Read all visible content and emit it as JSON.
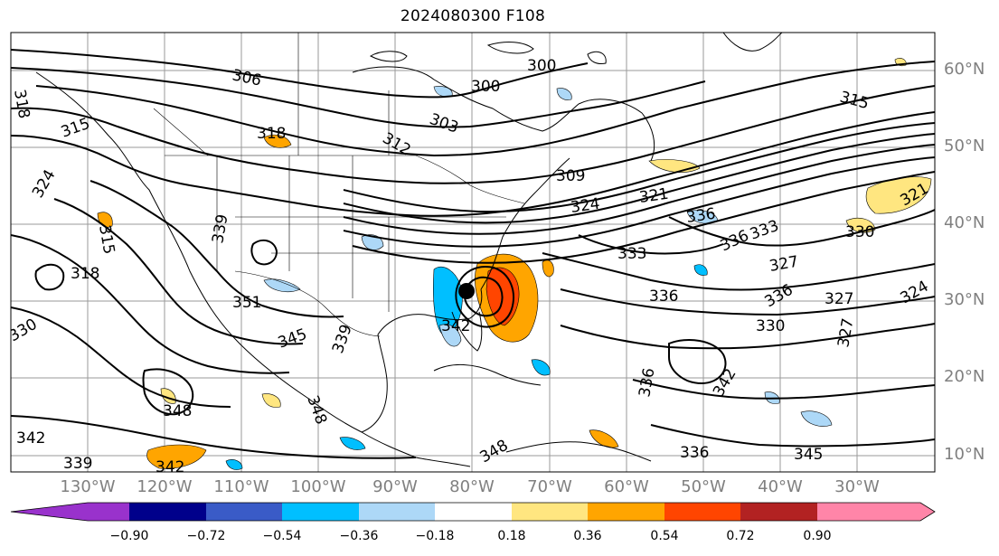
{
  "title": "2024080300 F108",
  "latitude_labels": [
    "60°N",
    "50°N",
    "40°N",
    "30°N",
    "20°N",
    "10°N"
  ],
  "longitude_labels": [
    "130°W",
    "120°W",
    "110°W",
    "100°W",
    "90°W",
    "80°W",
    "70°W",
    "60°W",
    "50°W",
    "40°W",
    "30°W"
  ],
  "contour_labels": [
    "306",
    "300",
    "300",
    "303",
    "312",
    "318",
    "315",
    "324",
    "318",
    "315",
    "330",
    "351",
    "345",
    "339",
    "348",
    "342",
    "339",
    "342",
    "348",
    "309",
    "321",
    "324",
    "336",
    "333",
    "336",
    "336",
    "333",
    "330",
    "327",
    "336",
    "327",
    "330",
    "327",
    "324",
    "321",
    "315",
    "318",
    "342",
    "336",
    "345",
    "336",
    "342",
    "339",
    "348"
  ],
  "colorbar": {
    "tick_labels": [
      "−0.90",
      "−0.72",
      "−0.54",
      "−0.36",
      "−0.18",
      "0.18",
      "0.36",
      "0.54",
      "0.72",
      "0.90"
    ],
    "colors": [
      "#9932cc",
      "#00008b",
      "#3a5bc7",
      "#00bfff",
      "#add8f7",
      "#ffffff",
      "#ffe680",
      "#ffa500",
      "#ff4500",
      "#b22222",
      "#ff85a8"
    ]
  },
  "marker": "storm-center-dot"
}
